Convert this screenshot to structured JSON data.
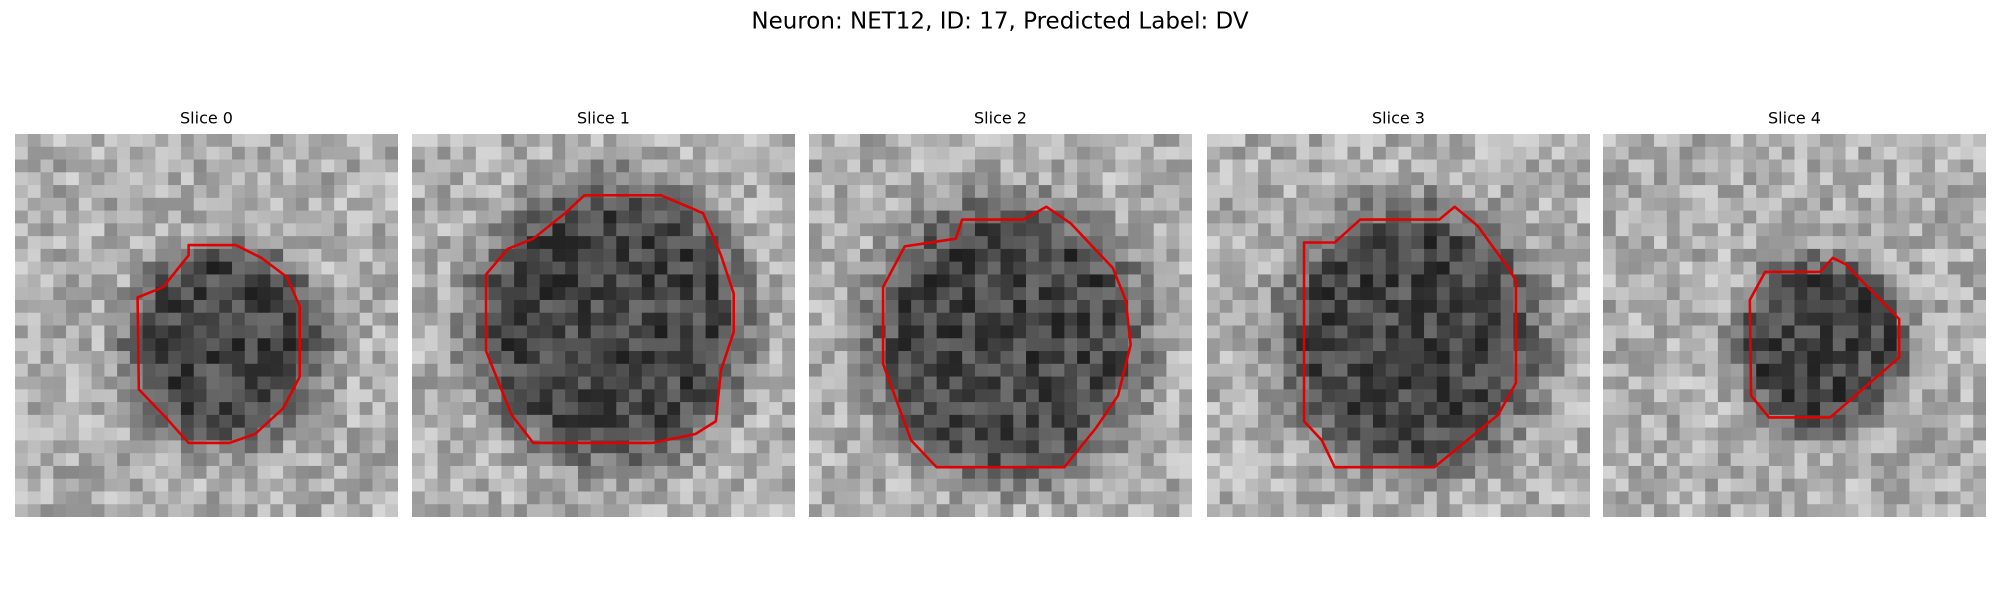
{
  "title": "Neuron: NET12, ID: 17, Predicted Label: DV",
  "panels": [
    {
      "title": "Slice 0"
    },
    {
      "title": "Slice 1"
    },
    {
      "title": "Slice 2"
    },
    {
      "title": "Slice 3"
    },
    {
      "title": "Slice 4"
    }
  ]
}
